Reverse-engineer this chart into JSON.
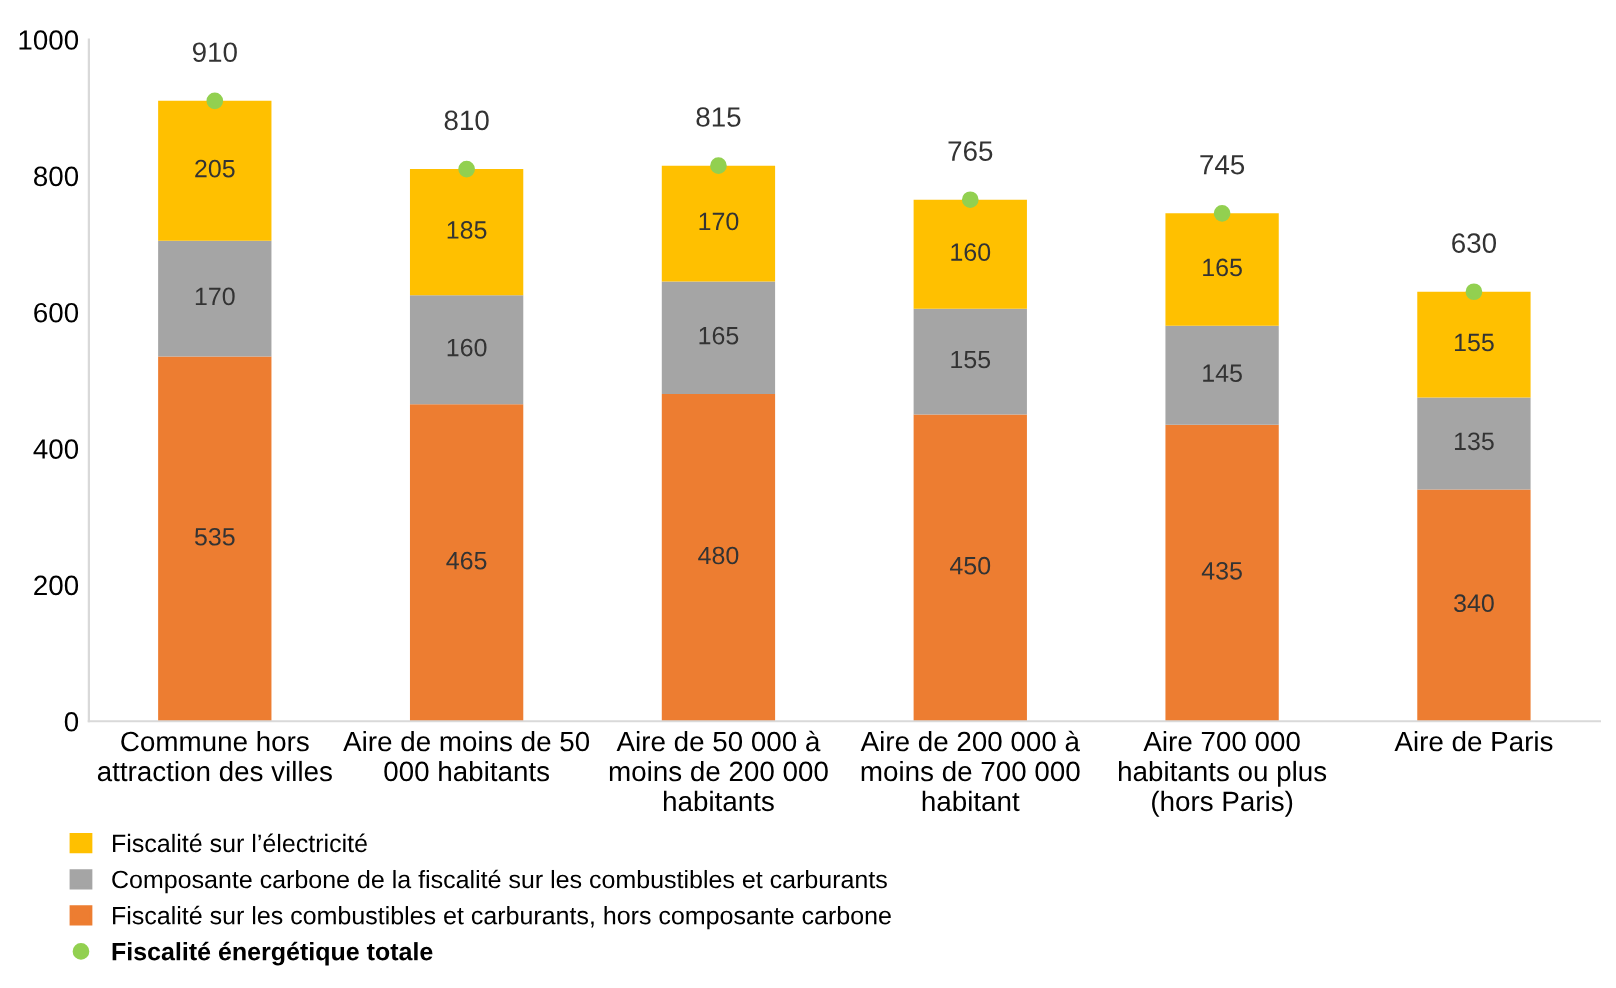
{
  "chart_data": {
    "type": "bar",
    "stacked": true,
    "categories": [
      "Commune hors\nattraction des villes",
      "Aire de moins de 50\n000 habitants",
      "Aire de 50 000 à\nmoins de 200 000\nhabitants",
      "Aire de 200 000 à\nmoins de 700 000\nhabitant",
      "Aire 700 000\nhabitants ou plus\n(hors Paris)",
      "Aire de Paris"
    ],
    "series": [
      {
        "name": "Fiscalité sur les combustibles et carburants, hors composante carbone",
        "color": "#ed7d31",
        "values": [
          535,
          465,
          480,
          450,
          435,
          340
        ]
      },
      {
        "name": "Composante carbone de la fiscalité sur les combustibles et carburants",
        "color": "#a5a5a5",
        "values": [
          170,
          160,
          165,
          155,
          145,
          135
        ]
      },
      {
        "name": "Fiscalité sur l’électricité",
        "color": "#ffc000",
        "values": [
          205,
          185,
          170,
          160,
          165,
          155
        ]
      },
      {
        "name": "Fiscalité énergétique totale",
        "type": "scatter",
        "color": "#92d050",
        "x": [
          "Commune hors\nattraction des villes",
          "Aire de moins de 50\n000 habitants",
          "Aire de 50 000 à\nmoins de 200 000\nhabitants",
          "Aire de 200 000 à\nmoins de 700 000\nhabitant",
          "Aire 700 000\nhabitants ou plus\n(hors Paris)",
          "Aire de Paris"
        ],
        "values": [
          910,
          810,
          815,
          765,
          745,
          630
        ]
      }
    ],
    "ylim": [
      0,
      1000
    ],
    "yticks": [
      0,
      200,
      400,
      600,
      800,
      1000
    ],
    "grid": false,
    "legend": "bottom",
    "marker": "circle",
    "data_labels": true
  }
}
